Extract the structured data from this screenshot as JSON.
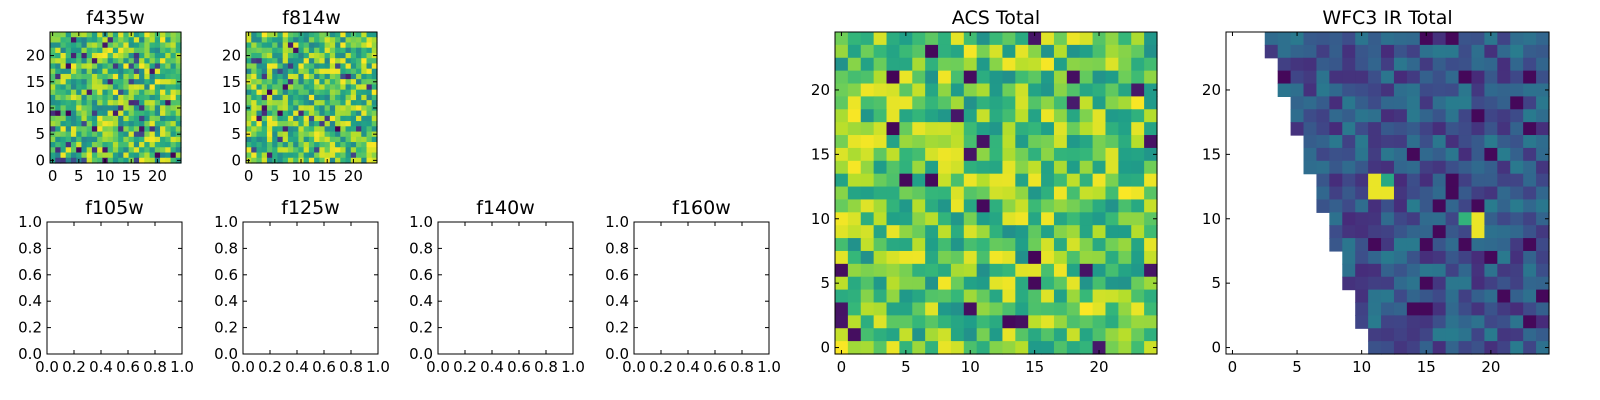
{
  "chart_data": [
    {
      "type": "heatmap",
      "title": "f435w",
      "xlim": [
        -0.5,
        24.5
      ],
      "ylim": [
        -0.5,
        24.5
      ],
      "xticks": [
        "0",
        "5",
        "10",
        "15",
        "20"
      ],
      "yticks": [
        "0",
        "5",
        "10",
        "15",
        "20"
      ],
      "grid_size": [
        25,
        25
      ],
      "colormap": "viridis",
      "values": "per-pixel noise field (approx. mid-to-high values, uniform random texture)"
    },
    {
      "type": "heatmap",
      "title": "f814w",
      "xlim": [
        -0.5,
        24.5
      ],
      "ylim": [
        -0.5,
        24.5
      ],
      "xticks": [
        "0",
        "5",
        "10",
        "15",
        "20"
      ],
      "yticks": [
        "0",
        "5",
        "10",
        "15",
        "20"
      ],
      "grid_size": [
        25,
        25
      ],
      "colormap": "viridis",
      "values": "per-pixel noise field (approx. mid-to-high values, uniform random texture)"
    },
    {
      "type": "line",
      "title": "f105w",
      "xlim": [
        0,
        1
      ],
      "ylim": [
        0,
        1
      ],
      "xticks": [
        "0.0",
        "0.2",
        "0.4",
        "0.6",
        "0.8",
        "1.0"
      ],
      "yticks": [
        "0.0",
        "0.2",
        "0.4",
        "0.6",
        "0.8",
        "1.0"
      ],
      "series": []
    },
    {
      "type": "line",
      "title": "f125w",
      "xlim": [
        0,
        1
      ],
      "ylim": [
        0,
        1
      ],
      "xticks": [
        "0.0",
        "0.2",
        "0.4",
        "0.6",
        "0.8",
        "1.0"
      ],
      "yticks": [
        "0.0",
        "0.2",
        "0.4",
        "0.6",
        "0.8",
        "1.0"
      ],
      "series": []
    },
    {
      "type": "line",
      "title": "f140w",
      "xlim": [
        0,
        1
      ],
      "ylim": [
        0,
        1
      ],
      "xticks": [
        "0.0",
        "0.2",
        "0.4",
        "0.6",
        "0.8",
        "1.0"
      ],
      "yticks": [
        "0.0",
        "0.2",
        "0.4",
        "0.6",
        "0.8",
        "1.0"
      ],
      "series": []
    },
    {
      "type": "line",
      "title": "f160w",
      "xlim": [
        0,
        1
      ],
      "ylim": [
        0,
        1
      ],
      "xticks": [
        "0.0",
        "0.2",
        "0.4",
        "0.6",
        "0.8",
        "1.0"
      ],
      "yticks": [
        "0.0",
        "0.2",
        "0.4",
        "0.6",
        "0.8",
        "1.0"
      ],
      "series": []
    },
    {
      "type": "heatmap",
      "title": "ACS Total",
      "xlim": [
        -0.5,
        24.5
      ],
      "ylim": [
        -0.5,
        24.5
      ],
      "xticks": [
        "0",
        "5",
        "10",
        "15",
        "20"
      ],
      "yticks": [
        "0",
        "5",
        "10",
        "15",
        "20"
      ],
      "grid_size": [
        25,
        25
      ],
      "colormap": "viridis",
      "values": "per-pixel noise field (mostly green/yellow, sparse dark-purple pixels)"
    },
    {
      "type": "heatmap",
      "title": "WFC3 IR Total",
      "xlim": [
        -0.5,
        24.5
      ],
      "ylim": [
        -0.5,
        24.5
      ],
      "xticks": [
        "0",
        "5",
        "10",
        "15",
        "20"
      ],
      "yticks": [
        "0",
        "5",
        "10",
        "15",
        "20"
      ],
      "grid_size": [
        25,
        25
      ],
      "colormap": "viridis",
      "masked_region": "left wedge (no data, white); first valid column per row decreases from ~11 at y=0 to ~3 at y=24",
      "values": "per-pixel field (mostly dark blue/purple, a few bright yellow pixels near (11,12), (19,10))"
    }
  ]
}
